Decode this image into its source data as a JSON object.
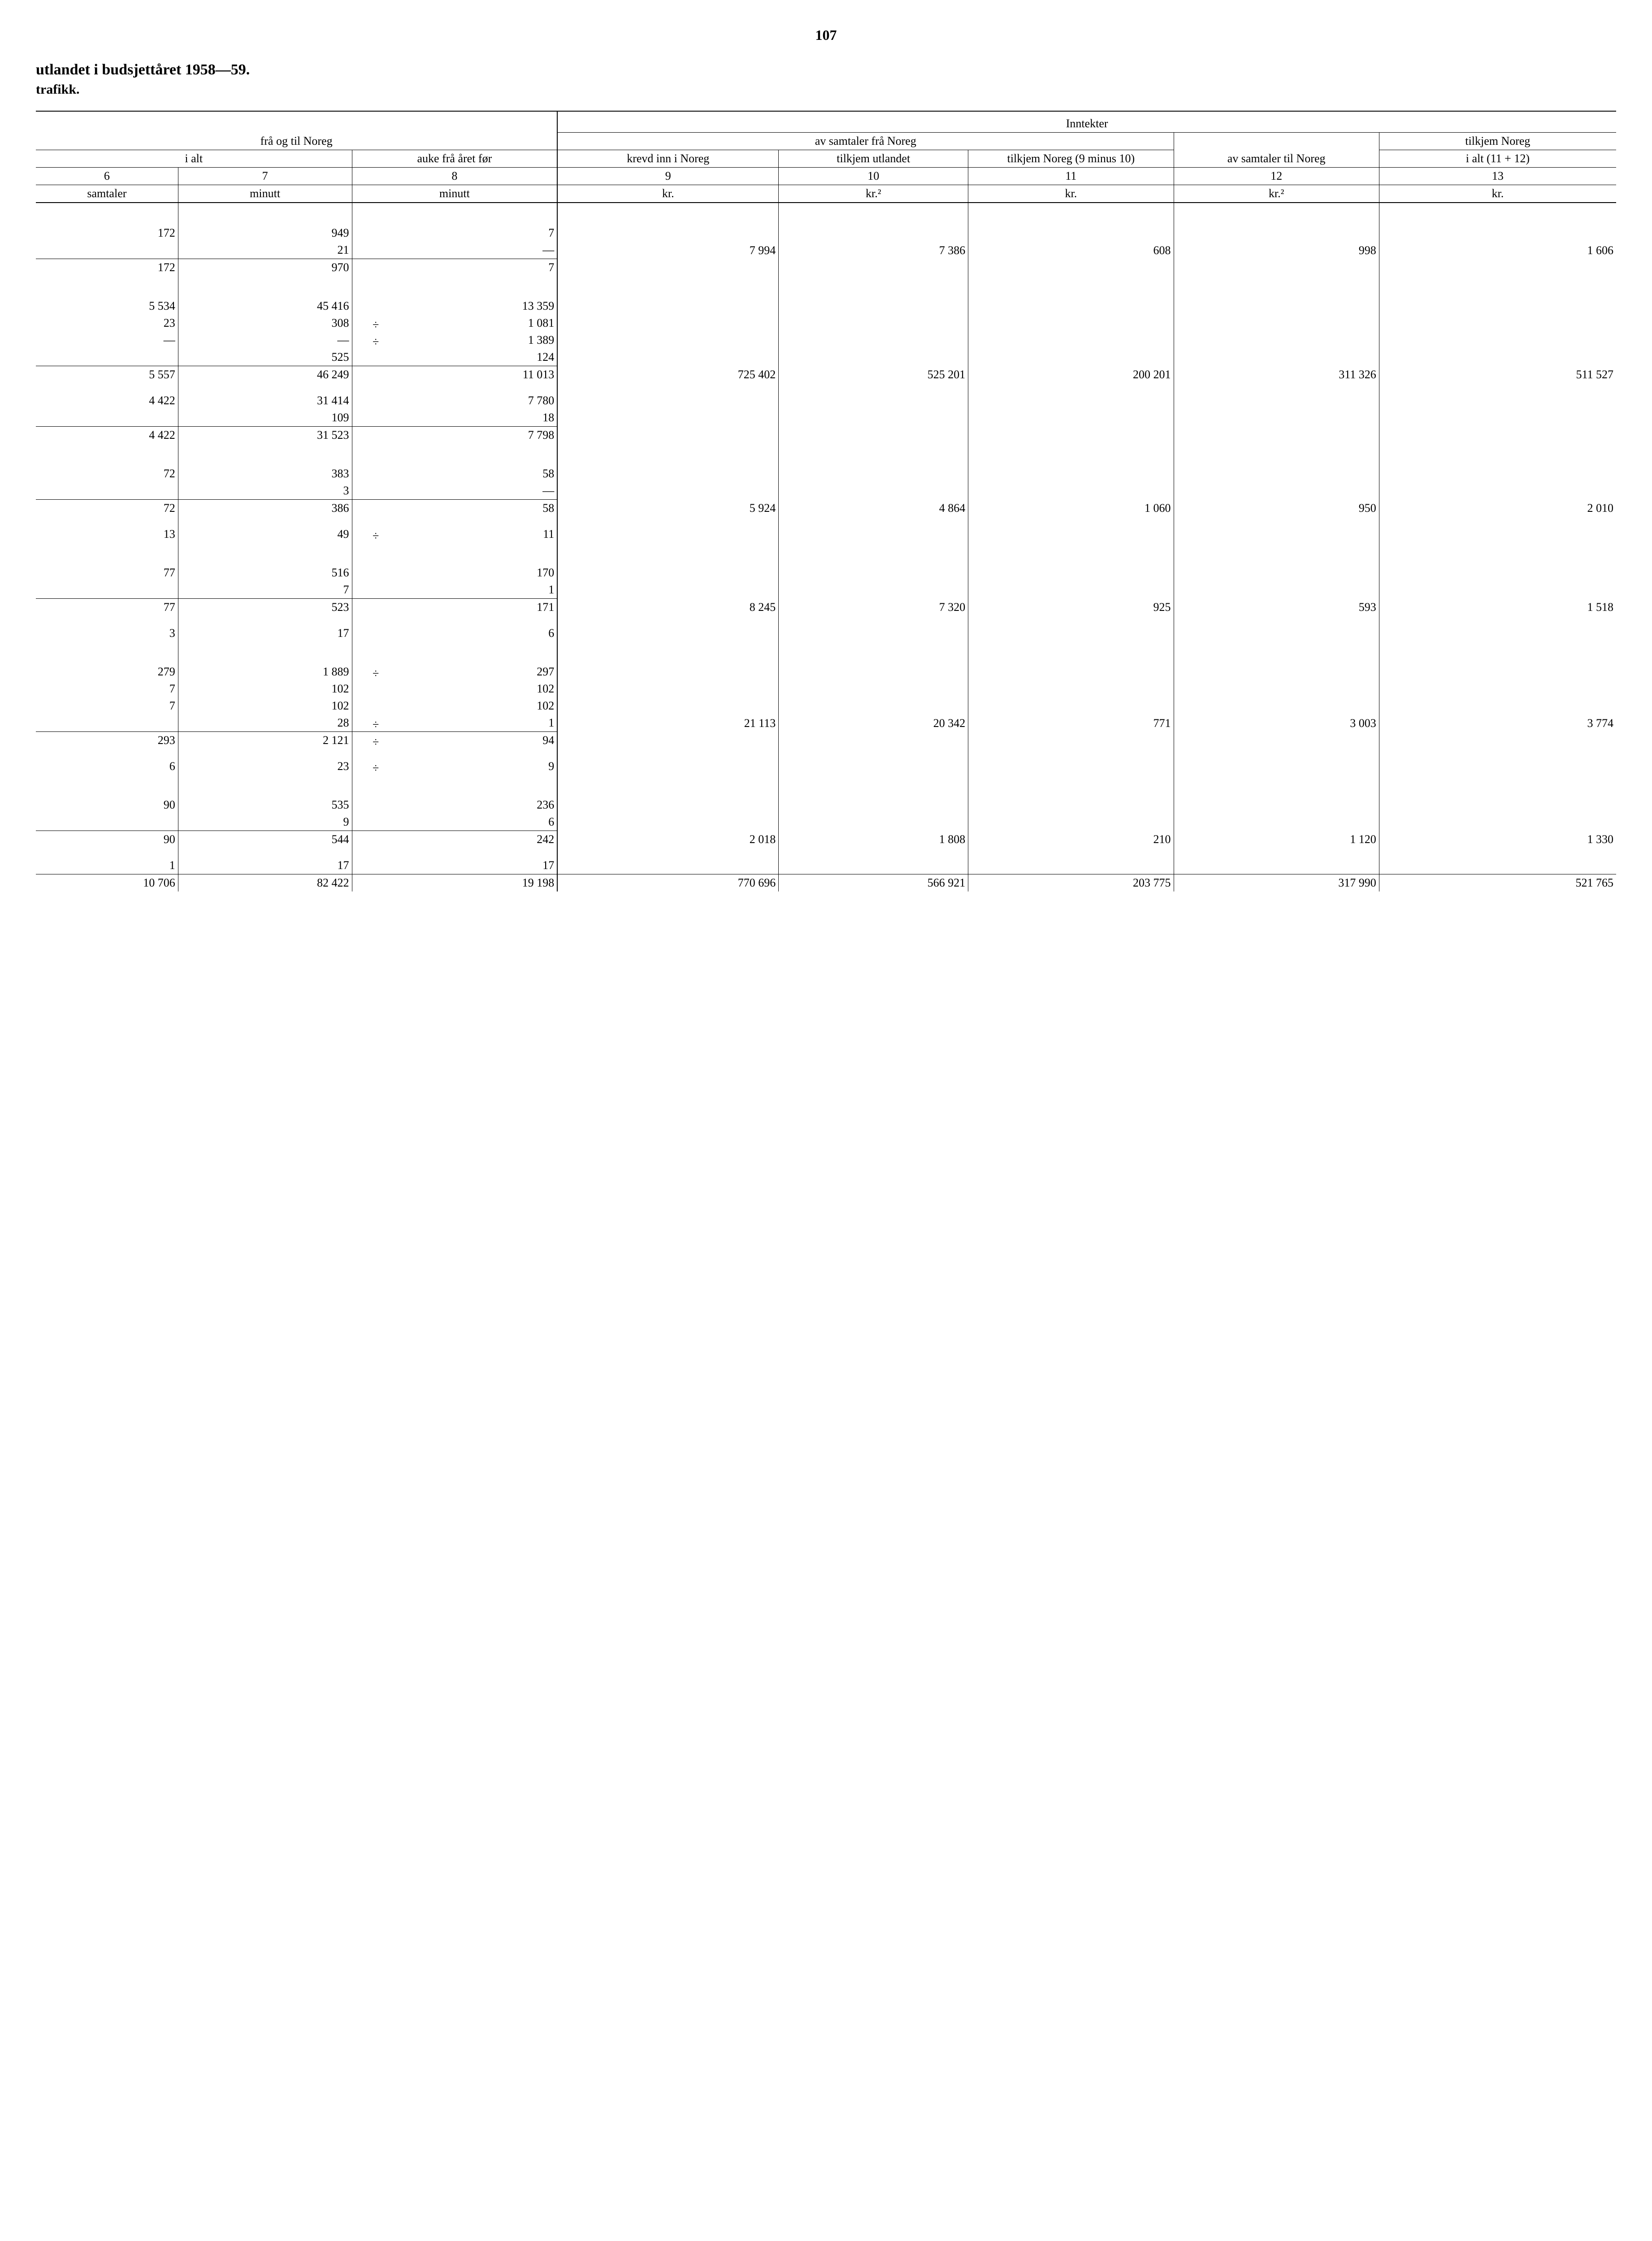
{
  "page_number": "107",
  "title": "utlandet i budsjettåret 1958—59.",
  "subtitle": "trafikk.",
  "headers": {
    "fra_og_til_noreg": "frå og til Noreg",
    "inntekter": "Inntekter",
    "i_alt": "i alt",
    "auke_fra_aret_for": "auke frå året før",
    "av_samtaler_fra_noreg": "av samtaler frå Noreg",
    "krevd_inn_i_noreg": "krevd inn i Noreg",
    "tilkjem_utlandet": "tilkjem utlandet",
    "tilkjem_noreg_9_minus_10": "tilkjem Noreg (9 minus 10)",
    "av_samtaler_til_noreg": "av samtaler til Noreg",
    "tilkjem_noreg": "tilkjem Noreg",
    "i_alt_11_12": "i alt (11 + 12)"
  },
  "colnums": {
    "c6": "6",
    "c7": "7",
    "c8": "8",
    "c9": "9",
    "c10": "10",
    "c11": "11",
    "c12": "12",
    "c13": "13"
  },
  "units": {
    "samtaler": "samtaler",
    "minutt": "minutt",
    "kr": "kr.",
    "kr2": "kr.²"
  },
  "neg": "÷",
  "dash": "—",
  "brace": "}",
  "groups": [
    {
      "left": [
        {
          "c6": "172",
          "c7": "949",
          "c8": "7"
        },
        {
          "c6": "",
          "c7": "21",
          "c8": "—",
          "c8_dash": true
        },
        {
          "sum": true,
          "c6": "172",
          "c7": "970",
          "c8": "7"
        }
      ],
      "right": {
        "c9": "7 994",
        "c10": "7 386",
        "c11": "608",
        "c12": "998",
        "c13": "1 606"
      }
    },
    {
      "left": [
        {
          "c6": "5 534",
          "c7": "45 416",
          "c8": "13 359"
        },
        {
          "c6": "23",
          "c7": "308",
          "c8": "1 081",
          "neg8": true
        },
        {
          "c6": "—",
          "c7": "—",
          "c8": "1 389",
          "neg8": true,
          "c6_dash": true,
          "c7_dash": true
        },
        {
          "c6": "",
          "c7": "525",
          "c8": "124"
        },
        {
          "sum": true,
          "c6": "5 557",
          "c7": "46 249",
          "c8": "11 013"
        },
        {
          "blank": true
        },
        {
          "c6": "4 422",
          "c7": "31 414",
          "c8": "7 780"
        },
        {
          "c6": "",
          "c7": "109",
          "c8": "18"
        },
        {
          "sum": true,
          "c6": "4 422",
          "c7": "31 523",
          "c8": "7 798"
        }
      ],
      "right": {
        "c9": "725 402",
        "c10": "525 201",
        "c11": "200 201",
        "c12": "311 326",
        "c13": "511 527"
      }
    },
    {
      "left": [
        {
          "c6": "72",
          "c7": "383",
          "c8": "58"
        },
        {
          "c6": "",
          "c7": "3",
          "c8": "—",
          "c8_dash": true
        },
        {
          "sum": true,
          "c6": "72",
          "c7": "386",
          "c8": "58"
        },
        {
          "blank": true
        },
        {
          "c6": "13",
          "c7": "49",
          "c8": "11",
          "neg8": true
        }
      ],
      "right": {
        "c9": "5 924",
        "c10": "4 864",
        "c11": "1 060",
        "c12": "950",
        "c13": "2 010"
      }
    },
    {
      "left": [
        {
          "c6": "77",
          "c7": "516",
          "c8": "170"
        },
        {
          "c6": "",
          "c7": "7",
          "c8": "1"
        },
        {
          "sum": true,
          "c6": "77",
          "c7": "523",
          "c8": "171"
        },
        {
          "blank": true
        },
        {
          "c6": "3",
          "c7": "17",
          "c8": "6"
        }
      ],
      "right": {
        "c9": "8 245",
        "c10": "7 320",
        "c11": "925",
        "c12": "593",
        "c13": "1 518"
      }
    },
    {
      "left": [
        {
          "c6": "279",
          "c7": "1 889",
          "c8": "297",
          "neg8": true
        },
        {
          "c6": "7",
          "c7": "102",
          "c8": "102"
        },
        {
          "c6": "7",
          "c7": "102",
          "c8": "102"
        },
        {
          "c6": "",
          "c7": "28",
          "c8": "1",
          "neg8": true
        },
        {
          "sum": true,
          "c6": "293",
          "c7": "2 121",
          "c8": "94",
          "neg8": true
        },
        {
          "blank": true
        },
        {
          "c6": "6",
          "c7": "23",
          "c8": "9",
          "neg8": true
        }
      ],
      "right": {
        "c9": "21 113",
        "c10": "20 342",
        "c11": "771",
        "c12": "3 003",
        "c13": "3 774"
      }
    },
    {
      "left": [
        {
          "c6": "90",
          "c7": "535",
          "c8": "236"
        },
        {
          "c6": "",
          "c7": "9",
          "c8": "6"
        },
        {
          "sum": true,
          "c6": "90",
          "c7": "544",
          "c8": "242"
        },
        {
          "blank": true
        },
        {
          "c6": "1",
          "c7": "17",
          "c8": "17"
        }
      ],
      "right": {
        "c9": "2 018",
        "c10": "1 808",
        "c11": "210",
        "c12": "1 120",
        "c13": "1 330"
      }
    }
  ],
  "totals": {
    "c6": "10 706",
    "c7": "82 422",
    "c8": "19 198",
    "c9": "770 696",
    "c10": "566 921",
    "c11": "203 775",
    "c12": "317 990",
    "c13": "521 765"
  }
}
